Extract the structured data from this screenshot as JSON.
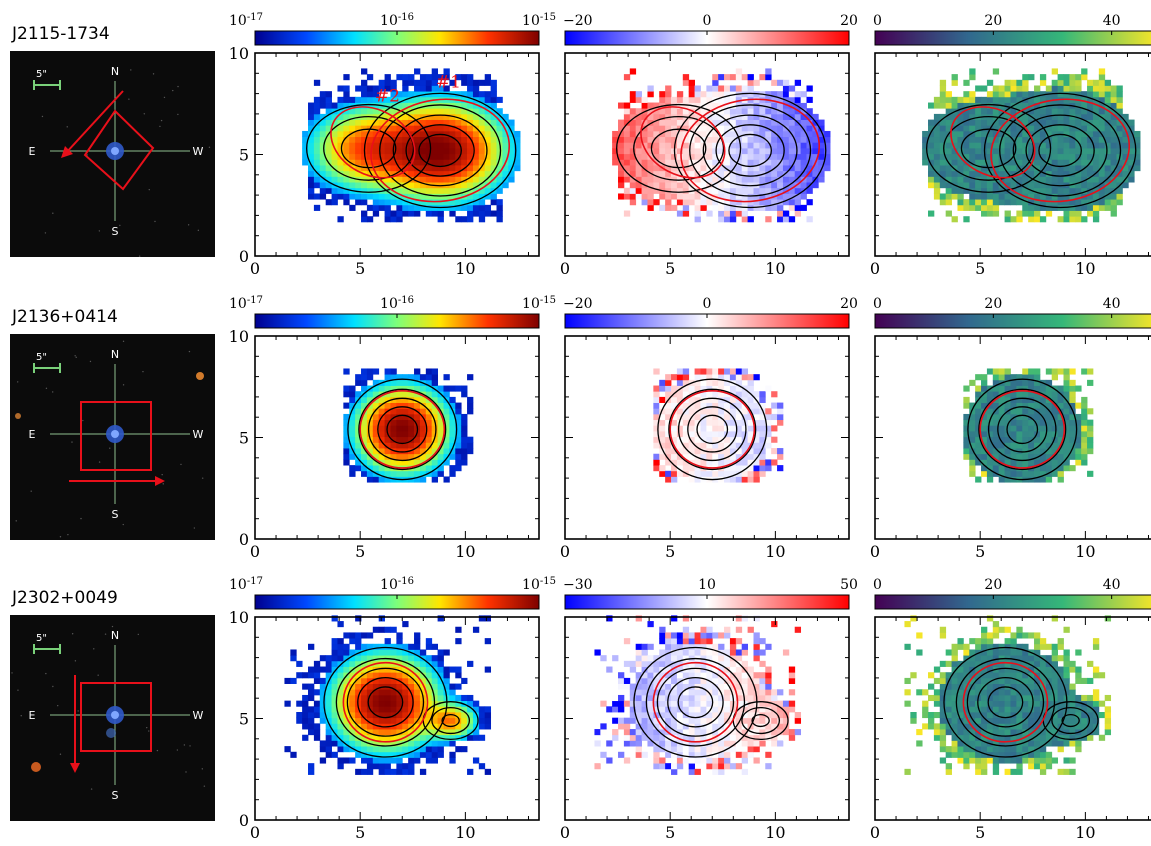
{
  "figure": {
    "rows": [
      {
        "object_name": "J2115-1734",
        "finder": {
          "scale_label": "5\"",
          "compass": {
            "n": "N",
            "s": "S",
            "e": "E",
            "w": "W"
          },
          "slit_shape": "diamond",
          "arrow_direction": "down-left"
        },
        "panels": [
          {
            "kind": "flux",
            "cbar_ticks": [
              "10^-17",
              "10^-16",
              "10^-15"
            ],
            "cbar_colors": [
              "#00008f",
              "#0048ff",
              "#00e0ff",
              "#7dff7a",
              "#ffe600",
              "#ff3300",
              "#7f0000"
            ],
            "source_labels": [
              "#2",
              "#1"
            ],
            "main_core_level": 0.95,
            "secondary_core_level": 0.55
          },
          {
            "kind": "velocity",
            "cbar_ticks": [
              "−20",
              "0",
              "20"
            ],
            "cbar_colors": [
              "#0000ff",
              "#ffffff",
              "#ff0000"
            ]
          },
          {
            "kind": "dispersion",
            "cbar_ticks": [
              "0",
              "20",
              "40"
            ],
            "cbar_colors": [
              "#440154",
              "#31688e",
              "#35b779",
              "#fde725"
            ]
          }
        ]
      },
      {
        "object_name": "J2136+0414",
        "finder": {
          "scale_label": "5\"",
          "compass": {
            "n": "N",
            "s": "S",
            "e": "E",
            "w": "W"
          },
          "slit_shape": "square",
          "arrow_direction": "right"
        },
        "panels": [
          {
            "kind": "flux",
            "cbar_ticks": [
              "10^-17",
              "10^-16",
              "10^-15"
            ],
            "main_core_level": 0.95
          },
          {
            "kind": "velocity",
            "cbar_ticks": [
              "−20",
              "0",
              "20"
            ]
          },
          {
            "kind": "dispersion",
            "cbar_ticks": [
              "0",
              "20",
              "40"
            ]
          }
        ]
      },
      {
        "object_name": "J2302+0049",
        "finder": {
          "scale_label": "5\"",
          "compass": {
            "n": "N",
            "s": "S",
            "e": "E",
            "w": "W"
          },
          "slit_shape": "square",
          "arrow_direction": "down"
        },
        "panels": [
          {
            "kind": "flux",
            "cbar_ticks": [
              "10^-17",
              "10^-16",
              "10^-15"
            ],
            "main_core_level": 0.95,
            "secondary_core_level": 0.45
          },
          {
            "kind": "velocity",
            "cbar_ticks": [
              "−30",
              "10",
              "50"
            ]
          },
          {
            "kind": "dispersion",
            "cbar_ticks": [
              "0",
              "20",
              "40"
            ]
          }
        ]
      }
    ]
  },
  "chart_data": {
    "type": "heatmap",
    "description_grid": "3x3 grid of IFU maps (flux, velocity, dispersion) with contours and finder images",
    "x_ticks": [
      0,
      5,
      10
    ],
    "y_ticks": [
      0,
      5,
      10
    ],
    "xlim": [
      0,
      13.5
    ],
    "ylim": [
      0,
      10
    ],
    "colorbars": {
      "flux": {
        "scale": "log",
        "ticks": [
          "10^-17",
          "10^-16",
          "10^-15"
        ]
      },
      "velocity_rows_1_2": {
        "range": [
          -20,
          20
        ],
        "ticks": [
          -20,
          0,
          20
        ]
      },
      "velocity_row_3": {
        "range": [
          -30,
          50
        ],
        "ticks": [
          -30,
          10,
          50
        ]
      },
      "dispersion": {
        "range": [
          0,
          48
        ],
        "ticks": [
          0,
          20,
          40
        ]
      }
    },
    "sources": [
      {
        "object": "J2115-1734",
        "centers": [
          [
            8.8,
            5.2
          ],
          [
            5.6,
            5.2
          ]
        ],
        "ellipses": [
          {
            "label": "#1",
            "cx": 8.8,
            "cy": 5.2,
            "rx": 3.3,
            "ry": 2.6
          },
          {
            "label": "#2",
            "cx": 5.6,
            "cy": 5.6,
            "rx": 2.2,
            "ry": 1.6
          }
        ]
      },
      {
        "object": "J2136+0414",
        "centers": [
          [
            7.0,
            5.4
          ]
        ],
        "ellipses": [
          {
            "cx": 7.0,
            "cy": 5.4,
            "rx": 2.0,
            "ry": 1.9
          }
        ]
      },
      {
        "object": "J2302+0049",
        "centers": [
          [
            6.2,
            5.8
          ],
          [
            9.3,
            4.9
          ]
        ],
        "ellipses": [
          {
            "cx": 6.2,
            "cy": 5.8,
            "rx": 2.0,
            "ry": 2.0
          }
        ]
      }
    ]
  }
}
